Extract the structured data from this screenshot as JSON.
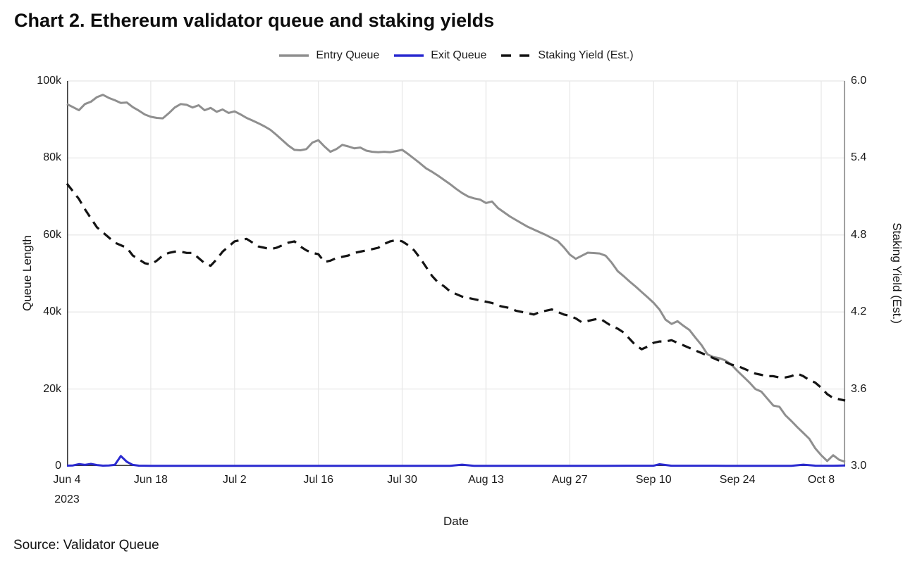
{
  "page": {
    "title": "Chart 2. Ethereum validator queue and staking yields",
    "source": "Source: Validator Queue"
  },
  "chart_data": {
    "type": "line",
    "title": "Chart 2. Ethereum validator queue and staking yields",
    "legend_position": "top-center",
    "grid": true,
    "colors": {
      "entry": "#8f8f8f",
      "exit": "#2a2ad0",
      "yield": "#141414",
      "gridline": "#e8e8e8",
      "axis_dark": "#3b3b3b",
      "axis_right": "#8a8a8a"
    },
    "x_axis": {
      "label": "Date",
      "year_label": "2023",
      "domain_days": [
        0,
        130
      ],
      "tick_days": [
        0,
        14,
        28,
        42,
        56,
        70,
        84,
        98,
        112,
        126
      ],
      "tick_labels": [
        "Jun 4",
        "Jun 18",
        "Jul 2",
        "Jul 16",
        "Jul 30",
        "Aug 13",
        "Aug 27",
        "Sep 10",
        "Sep 24",
        "Oct 8"
      ]
    },
    "y_left": {
      "label": "Queue Length",
      "range": [
        0,
        100000
      ],
      "tick_values": [
        0,
        20000,
        40000,
        60000,
        80000,
        100000
      ],
      "tick_labels": [
        "0",
        "20k",
        "40k",
        "60k",
        "80k",
        "100k"
      ]
    },
    "y_right": {
      "label": "Staking Yield (Est.)",
      "range": [
        3.0,
        6.0
      ],
      "tick_values": [
        3.0,
        3.6,
        4.2,
        4.8,
        5.4,
        6.0
      ],
      "tick_labels": [
        "3.0",
        "3.6",
        "4.2",
        "4.8",
        "5.4",
        "6.0"
      ]
    },
    "series": [
      {
        "name": "Entry Queue",
        "axis": "left",
        "style": "solid",
        "color": "#8f8f8f",
        "width": 3,
        "points": [
          [
            0,
            94000
          ],
          [
            1,
            93200
          ],
          [
            2,
            92400
          ],
          [
            3,
            94000
          ],
          [
            4,
            94600
          ],
          [
            5,
            95800
          ],
          [
            6,
            96400
          ],
          [
            7,
            95600
          ],
          [
            8,
            95000
          ],
          [
            9,
            94300
          ],
          [
            10,
            94400
          ],
          [
            11,
            93200
          ],
          [
            12,
            92300
          ],
          [
            13,
            91300
          ],
          [
            14,
            90700
          ],
          [
            15,
            90400
          ],
          [
            16,
            90300
          ],
          [
            17,
            91600
          ],
          [
            18,
            93100
          ],
          [
            19,
            94000
          ],
          [
            20,
            93800
          ],
          [
            21,
            93100
          ],
          [
            22,
            93700
          ],
          [
            23,
            92400
          ],
          [
            24,
            93000
          ],
          [
            25,
            92000
          ],
          [
            26,
            92600
          ],
          [
            27,
            91700
          ],
          [
            28,
            92100
          ],
          [
            29,
            91300
          ],
          [
            30,
            90400
          ],
          [
            31,
            89700
          ],
          [
            32,
            89000
          ],
          [
            33,
            88200
          ],
          [
            34,
            87300
          ],
          [
            35,
            86000
          ],
          [
            36,
            84600
          ],
          [
            37,
            83200
          ],
          [
            38,
            82100
          ],
          [
            39,
            82000
          ],
          [
            40,
            82300
          ],
          [
            41,
            84000
          ],
          [
            42,
            84600
          ],
          [
            43,
            83000
          ],
          [
            44,
            81600
          ],
          [
            45,
            82300
          ],
          [
            46,
            83400
          ],
          [
            47,
            83000
          ],
          [
            48,
            82500
          ],
          [
            49,
            82700
          ],
          [
            50,
            81900
          ],
          [
            51,
            81600
          ],
          [
            52,
            81500
          ],
          [
            53,
            81600
          ],
          [
            54,
            81500
          ],
          [
            55,
            81800
          ],
          [
            56,
            82100
          ],
          [
            57,
            81000
          ],
          [
            58,
            79800
          ],
          [
            59,
            78600
          ],
          [
            60,
            77300
          ],
          [
            61,
            76400
          ],
          [
            62,
            75400
          ],
          [
            63,
            74300
          ],
          [
            64,
            73200
          ],
          [
            65,
            72000
          ],
          [
            66,
            70900
          ],
          [
            67,
            70000
          ],
          [
            68,
            69500
          ],
          [
            69,
            69200
          ],
          [
            70,
            68300
          ],
          [
            71,
            68700
          ],
          [
            72,
            67000
          ],
          [
            73,
            65900
          ],
          [
            74,
            64800
          ],
          [
            75,
            63900
          ],
          [
            76,
            63000
          ],
          [
            77,
            62100
          ],
          [
            78,
            61400
          ],
          [
            79,
            60700
          ],
          [
            80,
            60000
          ],
          [
            81,
            59200
          ],
          [
            82,
            58400
          ],
          [
            83,
            56800
          ],
          [
            84,
            54900
          ],
          [
            85,
            53800
          ],
          [
            86,
            54600
          ],
          [
            87,
            55400
          ],
          [
            88,
            55300
          ],
          [
            89,
            55200
          ],
          [
            90,
            54600
          ],
          [
            91,
            52800
          ],
          [
            92,
            50600
          ],
          [
            93,
            49300
          ],
          [
            94,
            47900
          ],
          [
            95,
            46600
          ],
          [
            96,
            45200
          ],
          [
            97,
            43800
          ],
          [
            98,
            42400
          ],
          [
            99,
            40600
          ],
          [
            100,
            38000
          ],
          [
            101,
            36900
          ],
          [
            102,
            37600
          ],
          [
            103,
            36400
          ],
          [
            104,
            35300
          ],
          [
            105,
            33300
          ],
          [
            106,
            31400
          ],
          [
            107,
            29000
          ],
          [
            108,
            28300
          ],
          [
            109,
            28000
          ],
          [
            110,
            27400
          ],
          [
            111,
            26300
          ],
          [
            112,
            24700
          ],
          [
            113,
            23200
          ],
          [
            114,
            21700
          ],
          [
            115,
            20000
          ],
          [
            116,
            19300
          ],
          [
            117,
            17500
          ],
          [
            118,
            15700
          ],
          [
            119,
            15400
          ],
          [
            120,
            13200
          ],
          [
            121,
            11700
          ],
          [
            122,
            10100
          ],
          [
            123,
            8600
          ],
          [
            124,
            7100
          ],
          [
            125,
            4600
          ],
          [
            126,
            2800
          ],
          [
            127,
            1300
          ],
          [
            128,
            2800
          ],
          [
            129,
            1600
          ],
          [
            130,
            1100
          ]
        ]
      },
      {
        "name": "Exit Queue",
        "axis": "left",
        "style": "solid",
        "color": "#2a2ad0",
        "width": 3,
        "points": [
          [
            0,
            100
          ],
          [
            1,
            150
          ],
          [
            2,
            500
          ],
          [
            3,
            300
          ],
          [
            4,
            550
          ],
          [
            5,
            250
          ],
          [
            6,
            100
          ],
          [
            7,
            150
          ],
          [
            8,
            300
          ],
          [
            9,
            2600
          ],
          [
            10,
            1100
          ],
          [
            11,
            300
          ],
          [
            12,
            100
          ],
          [
            14,
            60
          ],
          [
            30,
            60
          ],
          [
            50,
            60
          ],
          [
            64,
            60
          ],
          [
            66,
            350
          ],
          [
            68,
            60
          ],
          [
            90,
            60
          ],
          [
            98,
            80
          ],
          [
            99,
            450
          ],
          [
            101,
            80
          ],
          [
            110,
            60
          ],
          [
            121,
            60
          ],
          [
            123,
            350
          ],
          [
            125,
            100
          ],
          [
            128,
            80
          ],
          [
            130,
            150
          ]
        ]
      },
      {
        "name": "Staking Yield (Est.)",
        "axis": "right",
        "style": "dashed",
        "color": "#141414",
        "width": 3.2,
        "points": [
          [
            0,
            5.2
          ],
          [
            1,
            5.14
          ],
          [
            2,
            5.08
          ],
          [
            3,
            5.0
          ],
          [
            4,
            4.93
          ],
          [
            5,
            4.86
          ],
          [
            6,
            4.82
          ],
          [
            7,
            4.78
          ],
          [
            8,
            4.74
          ],
          [
            9,
            4.72
          ],
          [
            10,
            4.7
          ],
          [
            11,
            4.64
          ],
          [
            12,
            4.61
          ],
          [
            13,
            4.58
          ],
          [
            14,
            4.57
          ],
          [
            15,
            4.6
          ],
          [
            16,
            4.64
          ],
          [
            17,
            4.66
          ],
          [
            18,
            4.67
          ],
          [
            19,
            4.67
          ],
          [
            20,
            4.66
          ],
          [
            21,
            4.66
          ],
          [
            22,
            4.62
          ],
          [
            23,
            4.58
          ],
          [
            24,
            4.56
          ],
          [
            25,
            4.61
          ],
          [
            26,
            4.67
          ],
          [
            27,
            4.71
          ],
          [
            28,
            4.75
          ],
          [
            29,
            4.76
          ],
          [
            30,
            4.77
          ],
          [
            31,
            4.74
          ],
          [
            32,
            4.71
          ],
          [
            33,
            4.7
          ],
          [
            34,
            4.69
          ],
          [
            35,
            4.7
          ],
          [
            36,
            4.72
          ],
          [
            37,
            4.74
          ],
          [
            38,
            4.75
          ],
          [
            39,
            4.71
          ],
          [
            40,
            4.68
          ],
          [
            41,
            4.66
          ],
          [
            42,
            4.65
          ],
          [
            43,
            4.59
          ],
          [
            44,
            4.6
          ],
          [
            45,
            4.62
          ],
          [
            46,
            4.63
          ],
          [
            47,
            4.64
          ],
          [
            48,
            4.66
          ],
          [
            49,
            4.67
          ],
          [
            50,
            4.68
          ],
          [
            51,
            4.69
          ],
          [
            52,
            4.7
          ],
          [
            53,
            4.73
          ],
          [
            54,
            4.75
          ],
          [
            55,
            4.76
          ],
          [
            56,
            4.75
          ],
          [
            57,
            4.72
          ],
          [
            58,
            4.68
          ],
          [
            59,
            4.62
          ],
          [
            60,
            4.55
          ],
          [
            61,
            4.48
          ],
          [
            62,
            4.43
          ],
          [
            63,
            4.4
          ],
          [
            64,
            4.36
          ],
          [
            65,
            4.34
          ],
          [
            66,
            4.32
          ],
          [
            67,
            4.31
          ],
          [
            68,
            4.3
          ],
          [
            69,
            4.29
          ],
          [
            70,
            4.28
          ],
          [
            71,
            4.27
          ],
          [
            72,
            4.25
          ],
          [
            73,
            4.24
          ],
          [
            74,
            4.23
          ],
          [
            75,
            4.21
          ],
          [
            76,
            4.2
          ],
          [
            77,
            4.19
          ],
          [
            78,
            4.18
          ],
          [
            79,
            4.2
          ],
          [
            80,
            4.21
          ],
          [
            81,
            4.22
          ],
          [
            82,
            4.2
          ],
          [
            83,
            4.18
          ],
          [
            84,
            4.17
          ],
          [
            85,
            4.15
          ],
          [
            86,
            4.12
          ],
          [
            87,
            4.13
          ],
          [
            88,
            4.14
          ],
          [
            89,
            4.15
          ],
          [
            90,
            4.12
          ],
          [
            91,
            4.09
          ],
          [
            92,
            4.07
          ],
          [
            93,
            4.04
          ],
          [
            94,
            3.99
          ],
          [
            95,
            3.94
          ],
          [
            96,
            3.91
          ],
          [
            97,
            3.93
          ],
          [
            98,
            3.96
          ],
          [
            99,
            3.97
          ],
          [
            100,
            3.97
          ],
          [
            101,
            3.98
          ],
          [
            102,
            3.96
          ],
          [
            103,
            3.94
          ],
          [
            104,
            3.92
          ],
          [
            105,
            3.9
          ],
          [
            106,
            3.88
          ],
          [
            107,
            3.86
          ],
          [
            108,
            3.84
          ],
          [
            109,
            3.82
          ],
          [
            110,
            3.81
          ],
          [
            111,
            3.79
          ],
          [
            112,
            3.78
          ],
          [
            113,
            3.76
          ],
          [
            114,
            3.74
          ],
          [
            115,
            3.72
          ],
          [
            116,
            3.71
          ],
          [
            117,
            3.7
          ],
          [
            118,
            3.7
          ],
          [
            119,
            3.69
          ],
          [
            120,
            3.69
          ],
          [
            121,
            3.7
          ],
          [
            122,
            3.72
          ],
          [
            123,
            3.7
          ],
          [
            124,
            3.67
          ],
          [
            125,
            3.65
          ],
          [
            126,
            3.61
          ],
          [
            127,
            3.56
          ],
          [
            128,
            3.53
          ],
          [
            129,
            3.52
          ],
          [
            130,
            3.51
          ]
        ]
      }
    ]
  }
}
